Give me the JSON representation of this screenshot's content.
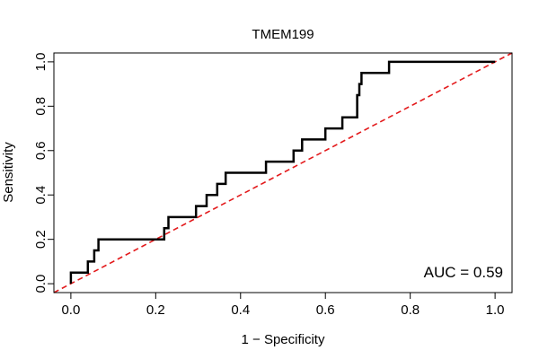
{
  "chart_data": {
    "type": "line",
    "title": "TMEM199",
    "xlabel": "1 − Specificity",
    "ylabel": "Sensitivity",
    "xlim": [
      -0.04,
      1.04
    ],
    "ylim": [
      -0.04,
      1.04
    ],
    "x_ticks": [
      0.0,
      0.2,
      0.4,
      0.6,
      0.8,
      1.0
    ],
    "x_tick_labels": [
      "0.0",
      "0.2",
      "0.4",
      "0.6",
      "0.8",
      "1.0"
    ],
    "y_ticks": [
      0.0,
      0.2,
      0.4,
      0.6,
      0.8,
      1.0
    ],
    "y_tick_labels": [
      "0.0",
      "0.2",
      "0.4",
      "0.6",
      "0.8",
      "1.0"
    ],
    "grid": false,
    "annotation": "AUC = 0.59",
    "series": [
      {
        "color": "#000000",
        "style": "solid-step",
        "x": [
          0.0,
          0.0,
          0.04,
          0.04,
          0.055,
          0.055,
          0.065,
          0.065,
          0.22,
          0.22,
          0.23,
          0.23,
          0.24,
          0.24,
          0.295,
          0.295,
          0.32,
          0.32,
          0.345,
          0.345,
          0.365,
          0.365,
          0.46,
          0.46,
          0.525,
          0.525,
          0.545,
          0.545,
          0.6,
          0.6,
          0.64,
          0.64,
          0.675,
          0.675,
          0.68,
          0.68,
          0.685,
          0.685,
          0.75,
          0.75,
          1.0
        ],
        "y": [
          0.0,
          0.05,
          0.05,
          0.1,
          0.1,
          0.15,
          0.15,
          0.2,
          0.2,
          0.25,
          0.25,
          0.3,
          0.3,
          0.3,
          0.3,
          0.35,
          0.35,
          0.4,
          0.4,
          0.45,
          0.45,
          0.5,
          0.5,
          0.55,
          0.55,
          0.6,
          0.6,
          0.65,
          0.65,
          0.7,
          0.7,
          0.75,
          0.75,
          0.85,
          0.85,
          0.9,
          0.9,
          0.95,
          0.95,
          1.0,
          1.0
        ]
      },
      {
        "color": "#e31a1c",
        "style": "dashed",
        "x": [
          -0.04,
          1.04
        ],
        "y": [
          -0.04,
          1.04
        ]
      }
    ]
  }
}
